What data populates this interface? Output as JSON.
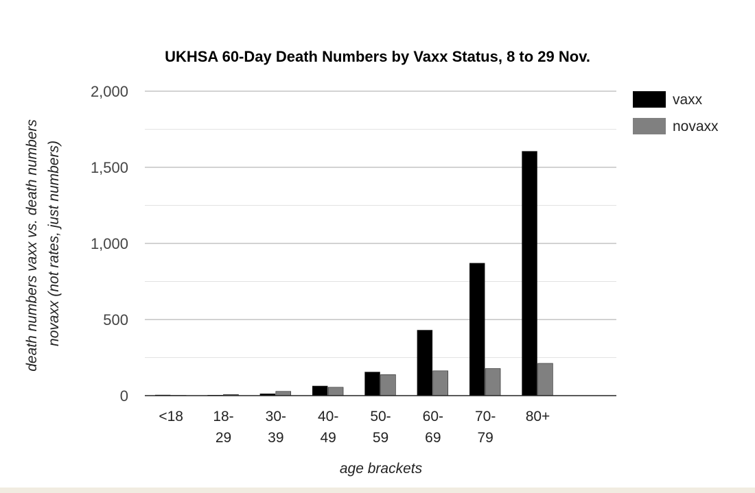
{
  "chart_data": {
    "type": "bar",
    "title": "UKHSA 60-Day Death Numbers by Vaxx Status, 8 to 29 Nov.",
    "xlabel": "age brackets",
    "ylabel_lines": [
      "death numbers vaxx vs. death numbers",
      "novaxx (not rates, just numbers)"
    ],
    "categories": [
      [
        "<18"
      ],
      [
        "18-",
        "29"
      ],
      [
        "30-",
        "39"
      ],
      [
        "40-",
        "49"
      ],
      [
        "50-",
        "59"
      ],
      [
        "60-",
        "69"
      ],
      [
        "70-",
        "79"
      ],
      [
        "80+"
      ]
    ],
    "series": [
      {
        "name": "vaxx",
        "color": "#000000",
        "values": [
          4,
          3,
          12,
          63,
          155,
          430,
          870,
          1605
        ]
      },
      {
        "name": "novaxx",
        "color": "#808080",
        "values": [
          2,
          8,
          28,
          55,
          138,
          163,
          178,
          212
        ]
      }
    ],
    "ylim": [
      0,
      2000
    ],
    "yticks": [
      0,
      500,
      1000,
      1500,
      2000
    ],
    "ytick_labels": [
      "0",
      "500",
      "1,000",
      "1,500",
      "2,000"
    ],
    "grid": true,
    "legend_position": "top-right"
  }
}
